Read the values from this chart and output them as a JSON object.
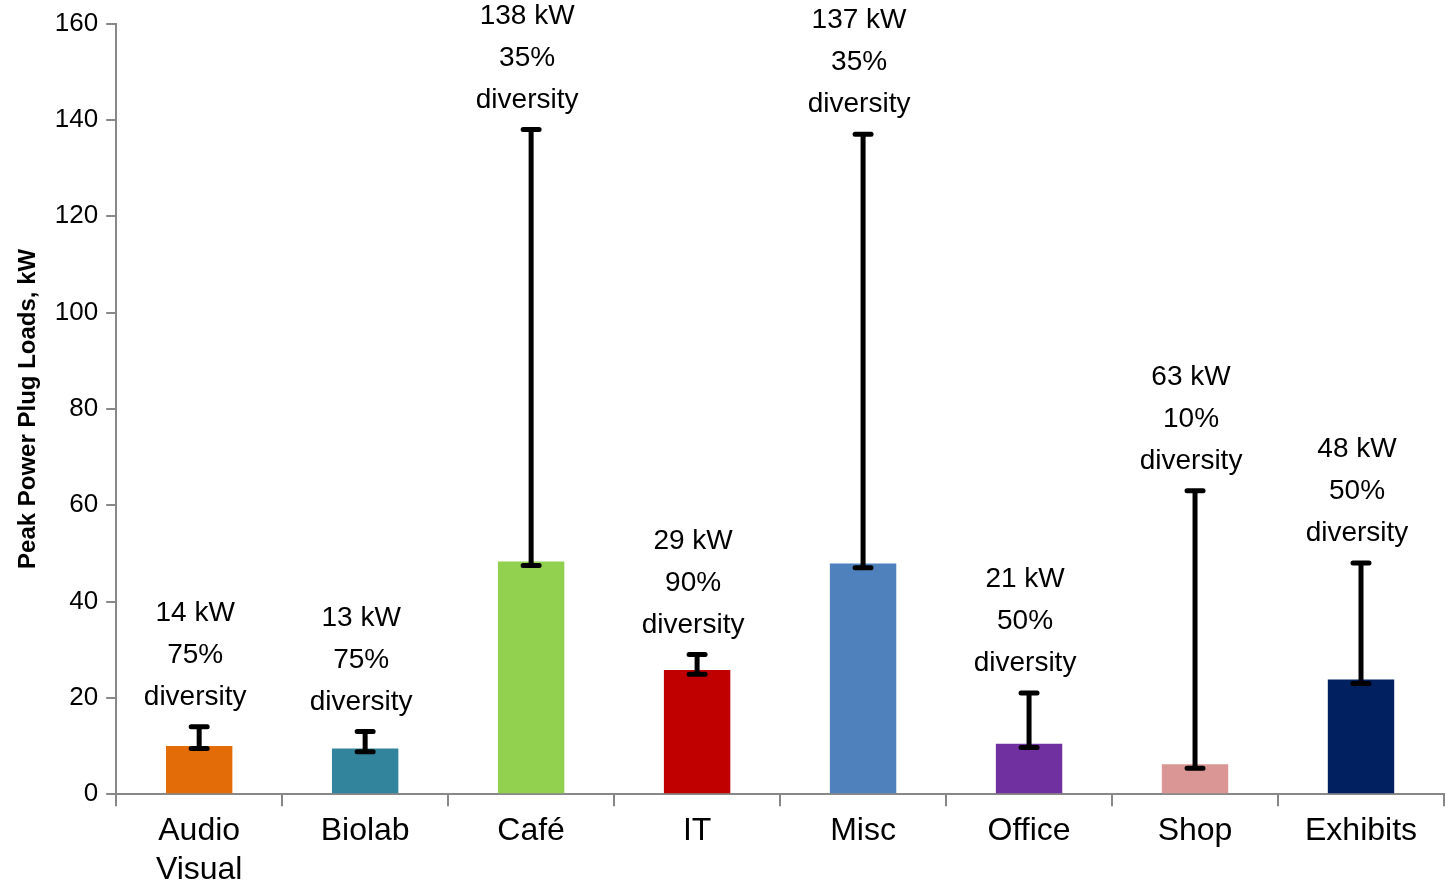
{
  "chart_data": {
    "type": "bar",
    "ylabel": "Peak Power Plug Loads, kW",
    "categories": [
      "Audio Visual",
      "Biolab",
      "Café",
      "IT",
      "Misc",
      "Office",
      "Shop",
      "Exhibits"
    ],
    "values": [
      10,
      9.5,
      48.3,
      25.8,
      47.9,
      10.5,
      6.2,
      23.8
    ],
    "colors": [
      "#e36c09",
      "#31849b",
      "#92d050",
      "#c00000",
      "#4f81bd",
      "#7030a0",
      "#d99694",
      "#002060"
    ],
    "errors": [
      [
        9.5,
        14
      ],
      [
        8.8,
        13
      ],
      [
        47.5,
        138
      ],
      [
        24.9,
        29
      ],
      [
        47,
        137
      ],
      [
        9.7,
        21
      ],
      [
        5.4,
        63
      ],
      [
        23,
        48
      ]
    ],
    "ylim": [
      0,
      160
    ],
    "yticks": [
      0,
      20,
      40,
      60,
      80,
      100,
      120,
      140,
      160
    ],
    "grid": false,
    "legend": false,
    "annotations": [
      {
        "text": "14 kW\n75%\ndiversity",
        "x": "Audio Visual",
        "y": 14
      },
      {
        "text": "13 kW\n75%\ndiversity",
        "x": "Biolab",
        "y": 13
      },
      {
        "text": "138 kW\n35%\ndiversity",
        "x": "Café",
        "y": 138
      },
      {
        "text": "29 kW\n90%\ndiversity",
        "x": "IT",
        "y": 29
      },
      {
        "text": "137 kW\n35%\ndiversity",
        "x": "Misc",
        "y": 137
      },
      {
        "text": "21 kW\n50%\ndiversity",
        "x": "Office",
        "y": 21
      },
      {
        "text": "63 kW\n10%\ndiversity",
        "x": "Shop",
        "y": 63
      },
      {
        "text": "48 kW\n50%\ndiversity",
        "x": "Exhibits",
        "y": 48
      }
    ]
  }
}
